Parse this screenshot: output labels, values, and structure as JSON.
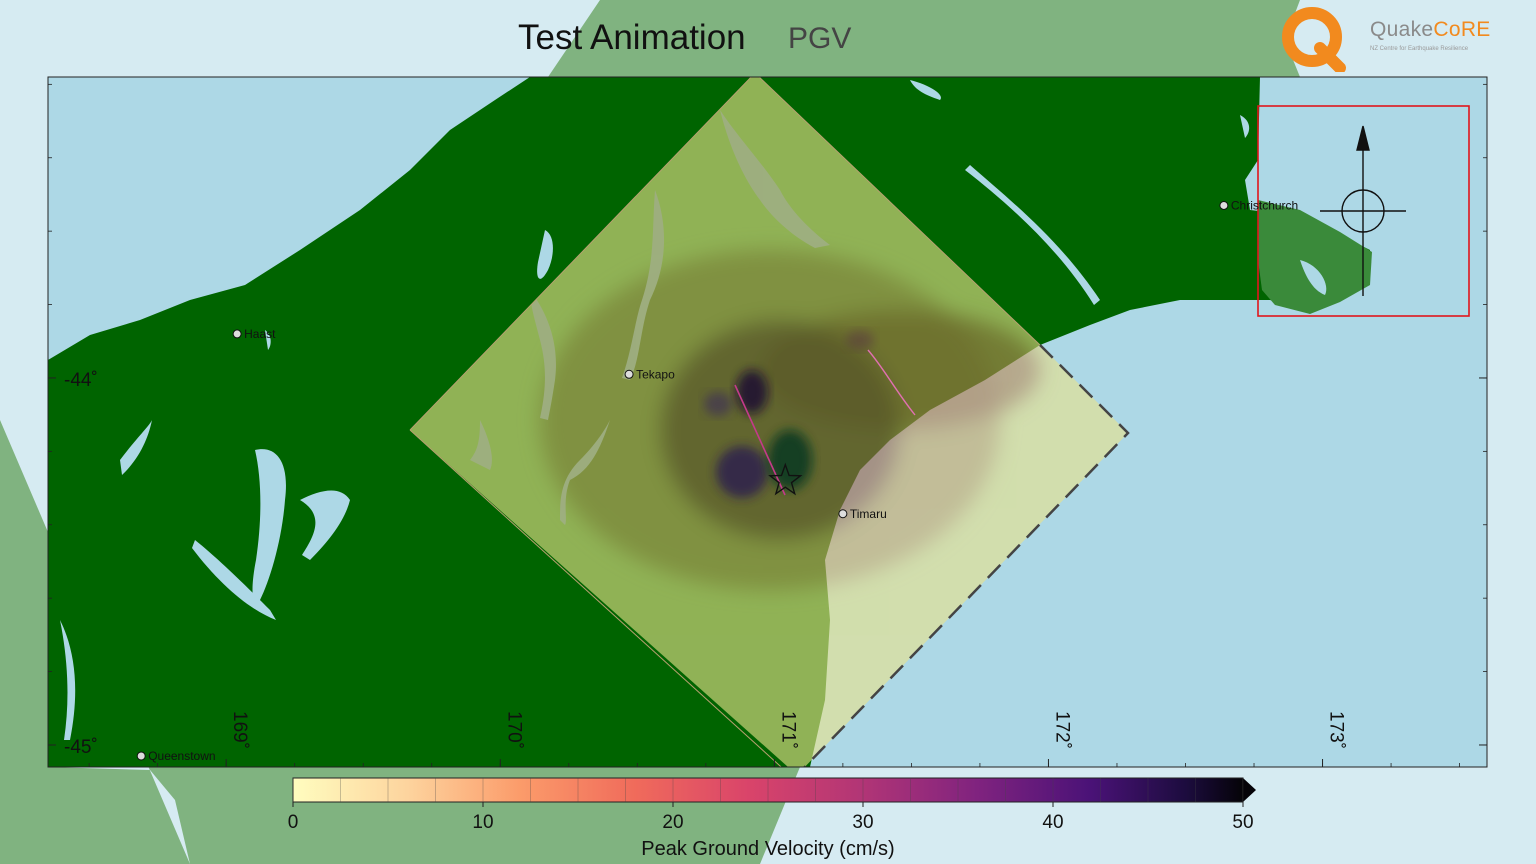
{
  "title": "Test Animation",
  "subtitle": "PGV",
  "logo": {
    "name_part1": "Quake",
    "name_part2": "CoRE",
    "tagline": "NZ Centre for Earthquake Resilience"
  },
  "colors": {
    "ocean": "#add8e6",
    "land": "#006400",
    "outer_land": "#80b380",
    "ocean_outer": "#d6ebf2",
    "inset_box": "#e0161c",
    "logo_orange": "#f28a1e"
  },
  "map": {
    "lon_range": [
      168.35,
      173.6
    ],
    "lat_range": [
      -45.06,
      -43.18
    ],
    "lon_ticks": [
      169,
      170,
      171,
      172,
      173
    ],
    "lon_tick_labels": [
      "169˚",
      "170˚",
      "171˚",
      "172˚",
      "173˚"
    ],
    "lat_ticks": [
      -44,
      -45
    ],
    "lat_tick_labels": [
      "-44˚",
      "-45˚"
    ],
    "cities": [
      {
        "name": "Christchurch",
        "lon": 172.64,
        "lat": -43.53
      },
      {
        "name": "Haast",
        "lon": 169.04,
        "lat": -43.88
      },
      {
        "name": "Tekapo",
        "lon": 170.47,
        "lat": -43.99
      },
      {
        "name": "Timaru",
        "lon": 171.25,
        "lat": -44.37
      },
      {
        "name": "Queenstown",
        "lon": 168.69,
        "lat": -45.03
      }
    ],
    "epicenter": {
      "lon": 171.04,
      "lat": -44.28
    }
  },
  "colorbar": {
    "label": "Peak Ground Velocity (cm/s)",
    "min": 0,
    "max": 50,
    "ticks": [
      0,
      10,
      20,
      30,
      40,
      50
    ],
    "tick_labels": [
      "0",
      "10",
      "20",
      "30",
      "40",
      "50"
    ]
  }
}
